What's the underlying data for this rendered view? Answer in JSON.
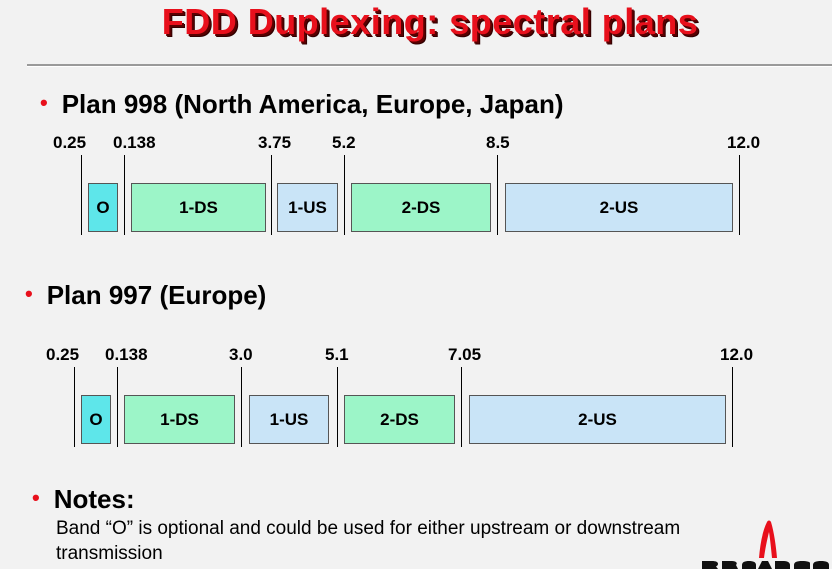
{
  "title": "FDD Duplexing: spectral plans",
  "plan998": {
    "heading": "Plan 998 (North America, Europe, Japan)",
    "ticks": [
      "0.25",
      "0.138",
      "3.75",
      "5.2",
      "8.5",
      "12.0"
    ],
    "bands": [
      {
        "label": "O",
        "kind": "optional"
      },
      {
        "label": "1-DS",
        "kind": "downstream"
      },
      {
        "label": "1-US",
        "kind": "upstream"
      },
      {
        "label": "2-DS",
        "kind": "downstream"
      },
      {
        "label": "2-US",
        "kind": "upstream"
      }
    ]
  },
  "plan997": {
    "heading": "Plan 997 (Europe)",
    "ticks": [
      "0.25",
      "0.138",
      "3.0",
      "5.1",
      "7.05",
      "12.0"
    ],
    "bands": [
      {
        "label": "O",
        "kind": "optional"
      },
      {
        "label": "1-DS",
        "kind": "downstream"
      },
      {
        "label": "1-US",
        "kind": "upstream"
      },
      {
        "label": "2-DS",
        "kind": "downstream"
      },
      {
        "label": "2-US",
        "kind": "upstream"
      }
    ]
  },
  "notes": {
    "heading": "Notes:",
    "text": "Band “O” is optional and could be used for either upstream or downstream transmission"
  },
  "colors": {
    "title": "#e8101c",
    "bullet": "#e8101c",
    "optional_band": "#5ee6ea",
    "downstream_band": "#9cf5c8",
    "upstream_band": "#c9e4f7",
    "logo": "#e8101c"
  },
  "logo": {
    "name": "broadcom-logo"
  }
}
